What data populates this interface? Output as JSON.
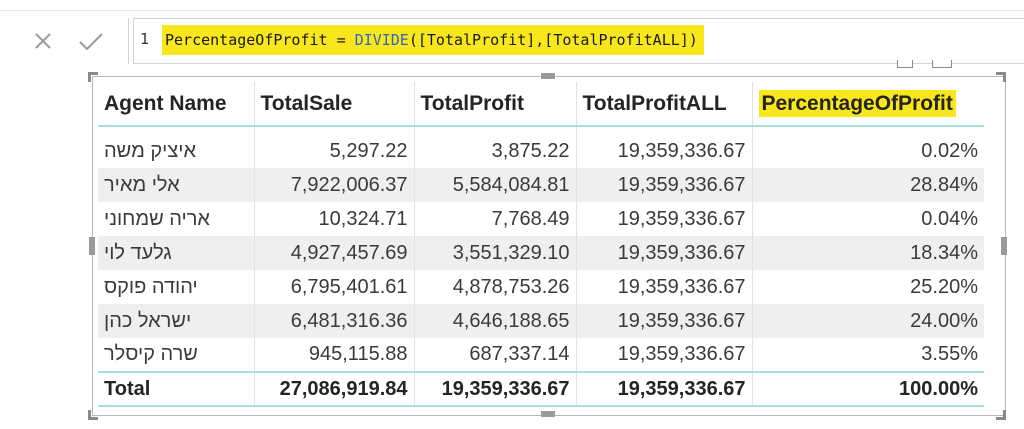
{
  "formula_bar": {
    "line_number": "1",
    "measure_name": "PercentageOfProfit",
    "operator": " = ",
    "function": "DIVIDE",
    "args": "([TotalProfit],[TotalProfitALL])",
    "highlight_color": "#f8e71c"
  },
  "table": {
    "headers": [
      "Agent Name",
      "TotalSale",
      "TotalProfit",
      "TotalProfitALL",
      "PercentageOfProfit"
    ],
    "rows": [
      [
        "איציק משה",
        "5,297.22",
        "3,875.22",
        "19,359,336.67",
        "0.02%"
      ],
      [
        "אלי מאיר",
        "7,922,006.37",
        "5,584,084.81",
        "19,359,336.67",
        "28.84%"
      ],
      [
        "אריה שמחוני",
        "10,324.71",
        "7,768.49",
        "19,359,336.67",
        "0.04%"
      ],
      [
        "גלעד לוי",
        "4,927,457.69",
        "3,551,329.10",
        "19,359,336.67",
        "18.34%"
      ],
      [
        "יהודה פוקס",
        "6,795,401.61",
        "4,878,753.26",
        "19,359,336.67",
        "25.20%"
      ],
      [
        "ישראל כהן",
        "6,481,316.36",
        "4,646,188.65",
        "19,359,336.67",
        "24.00%"
      ],
      [
        "שרה קיסלר",
        "945,115.88",
        "687,337.14",
        "19,359,336.67",
        "3.55%"
      ]
    ],
    "total": [
      "Total",
      "27,086,919.84",
      "19,359,336.67",
      "19,359,336.67",
      "100.00%"
    ],
    "header_underline_color": "#a9dcdc",
    "band_color": "#efefef"
  }
}
